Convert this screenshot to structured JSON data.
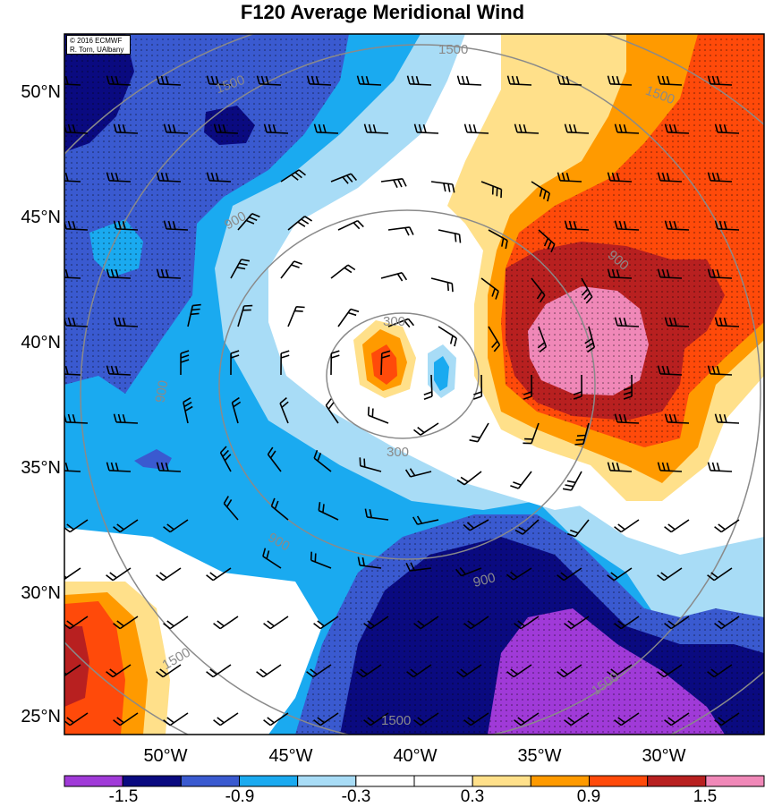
{
  "title": "F120 Average Meridional Wind",
  "credit": {
    "line1": "© 2016 ECMWF",
    "line2": "R. Torn, UAlbany"
  },
  "latitude_labels": [
    "50°N",
    "45°N",
    "40°N",
    "35°N",
    "30°N",
    "25°N"
  ],
  "longitude_labels": [
    "50°W",
    "45°W",
    "40°W",
    "35°W",
    "30°W"
  ],
  "contour_labels": [
    "1500",
    "1500",
    "1500",
    "900",
    "900",
    "900",
    "900",
    "900",
    "300",
    "300",
    "1500",
    "1500",
    "1500"
  ],
  "colorbar": {
    "tick_labels": [
      "-1.5",
      "-0.9",
      "-0.3",
      "0.3",
      "0.9",
      "1.5"
    ],
    "colors": [
      "#a03ad8",
      "#0a0a80",
      "#3a5ad0",
      "#1aaaf0",
      "#a8dcf6",
      "#ffffff",
      "#ffffff",
      "#ffe08a",
      "#ff9a00",
      "#ff4a0a",
      "#b82020",
      "#f088b8"
    ]
  },
  "colors": {
    "purple": "#a03ad8",
    "navy": "#0a0a80",
    "royal": "#3a5ad0",
    "cyan": "#1aaaf0",
    "lightblue": "#a8dcf6",
    "white": "#ffffff",
    "lightyellow": "#ffe08a",
    "orange": "#ff9a00",
    "redorange": "#ff4a0a",
    "darkred": "#b82020",
    "pink": "#f088b8",
    "contour_gray": "#8a8a8a"
  }
}
